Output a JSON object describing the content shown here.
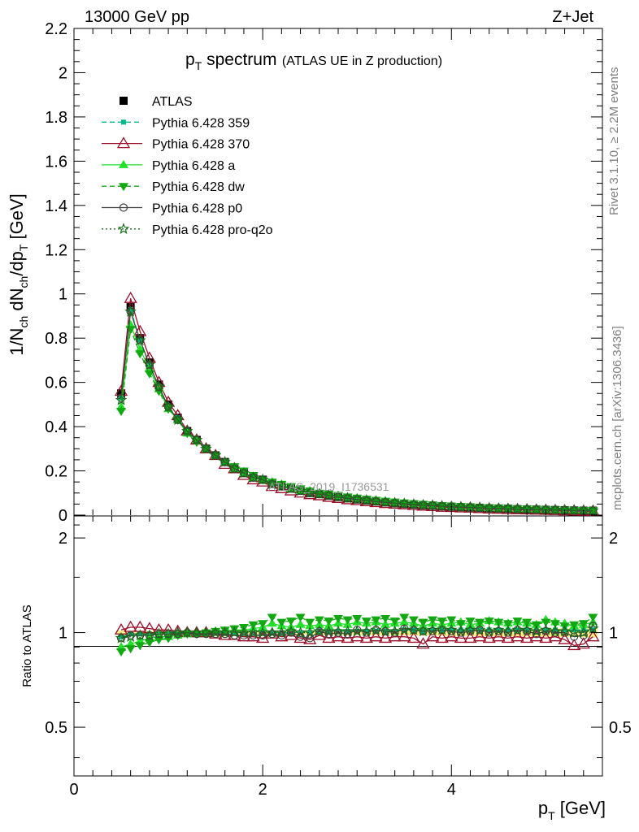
{
  "header": {
    "energy_label": "13000 GeV pp",
    "process_label": "Z+Jet"
  },
  "title": {
    "main": "p",
    "main_sub": "T",
    "main_rest": " spectrum",
    "subtitle": "(ATLAS UE in Z production)"
  },
  "side_labels": {
    "rivet": "Rivet 3.1.10, ≥ 2.2M events",
    "mcplots": "mcplots.cern.ch [arXiv:1306.3436]"
  },
  "watermark": "ATLAS_2019_I1736531",
  "chart_data": [
    {
      "type": "line",
      "panel": "main",
      "ylabel": "1/N_ch dN_ch/dp_T [GeV]",
      "xlim": [
        0,
        5.6
      ],
      "ylim": [
        0,
        2.2
      ],
      "y_ticks": [
        "0",
        "0.2",
        "0.4",
        "0.6",
        "0.8",
        "1",
        "1.2",
        "1.4",
        "1.6",
        "1.8",
        "2",
        "2.2"
      ],
      "x": [
        0.5,
        0.6,
        0.7,
        0.8,
        0.9,
        1.0,
        1.1,
        1.2,
        1.3,
        1.4,
        1.5,
        1.6,
        1.7,
        1.8,
        1.9,
        2.0,
        2.1,
        2.2,
        2.3,
        2.4,
        2.5,
        2.6,
        2.7,
        2.8,
        2.9,
        3.0,
        3.1,
        3.2,
        3.3,
        3.4,
        3.5,
        3.6,
        3.7,
        3.8,
        3.9,
        4.0,
        4.1,
        4.2,
        4.3,
        4.4,
        4.5,
        4.6,
        4.7,
        4.8,
        4.9,
        5.0,
        5.1,
        5.2,
        5.3,
        5.4,
        5.5
      ],
      "series": [
        {
          "name": "ATLAS",
          "color": "#000000",
          "marker": "filled-square",
          "line": "none",
          "values": [
            0.55,
            0.94,
            0.8,
            0.69,
            0.59,
            0.5,
            0.44,
            0.38,
            0.34,
            0.3,
            0.27,
            0.24,
            0.21,
            0.19,
            0.17,
            0.16,
            0.14,
            0.13,
            0.12,
            0.11,
            0.1,
            0.095,
            0.088,
            0.082,
            0.076,
            0.071,
            0.066,
            0.062,
            0.058,
            0.054,
            0.051,
            0.048,
            0.045,
            0.043,
            0.04,
            0.038,
            0.036,
            0.035,
            0.033,
            0.031,
            0.03,
            0.029,
            0.027,
            0.026,
            0.025,
            0.024,
            0.023,
            0.022,
            0.021,
            0.02,
            0.02
          ]
        },
        {
          "name": "Pythia 6.428 359",
          "color": "#00b887",
          "marker": "small-filled-square",
          "line": "dashed",
          "values": [
            0.53,
            0.93,
            0.79,
            0.68,
            0.58,
            0.49,
            0.44,
            0.38,
            0.34,
            0.3,
            0.27,
            0.24,
            0.21,
            0.19,
            0.17,
            0.16,
            0.14,
            0.13,
            0.12,
            0.11,
            0.1,
            0.096,
            0.089,
            0.083,
            0.077,
            0.072,
            0.067,
            0.063,
            0.059,
            0.055,
            0.052,
            0.049,
            0.046,
            0.044,
            0.041,
            0.039,
            0.037,
            0.036,
            0.034,
            0.032,
            0.031,
            0.03,
            0.028,
            0.027,
            0.026,
            0.025,
            0.024,
            0.023,
            0.022,
            0.021,
            0.021
          ]
        },
        {
          "name": "Pythia 6.428 370",
          "color": "#9b0f2a",
          "marker": "open-triangle",
          "line": "solid",
          "values": [
            0.56,
            0.98,
            0.83,
            0.71,
            0.6,
            0.51,
            0.45,
            0.38,
            0.34,
            0.3,
            0.27,
            0.23,
            0.21,
            0.18,
            0.16,
            0.15,
            0.13,
            0.12,
            0.11,
            0.1,
            0.093,
            0.088,
            0.081,
            0.076,
            0.07,
            0.066,
            0.061,
            0.057,
            0.053,
            0.05,
            0.047,
            0.044,
            0.041,
            0.039,
            0.036,
            0.035,
            0.033,
            0.032,
            0.03,
            0.028,
            0.027,
            0.026,
            0.025,
            0.024,
            0.023,
            0.022,
            0.021,
            0.02,
            0.019,
            0.018,
            0.018
          ]
        },
        {
          "name": "Pythia 6.428 a",
          "color": "#22e02a",
          "marker": "filled-triangle",
          "line": "solid",
          "values": [
            0.49,
            0.86,
            0.75,
            0.66,
            0.57,
            0.48,
            0.43,
            0.37,
            0.34,
            0.3,
            0.27,
            0.24,
            0.21,
            0.19,
            0.17,
            0.16,
            0.15,
            0.14,
            0.12,
            0.11,
            0.11,
            0.1,
            0.094,
            0.087,
            0.081,
            0.076,
            0.071,
            0.066,
            0.062,
            0.058,
            0.055,
            0.052,
            0.049,
            0.046,
            0.043,
            0.041,
            0.039,
            0.037,
            0.035,
            0.033,
            0.032,
            0.031,
            0.029,
            0.028,
            0.027,
            0.026,
            0.025,
            0.024,
            0.023,
            0.022,
            0.022
          ]
        },
        {
          "name": "Pythia 6.428 dw",
          "color": "#11a811",
          "marker": "filled-inverted-triangle",
          "line": "dashed",
          "values": [
            0.47,
            0.84,
            0.73,
            0.64,
            0.56,
            0.48,
            0.43,
            0.37,
            0.33,
            0.3,
            0.27,
            0.24,
            0.22,
            0.2,
            0.18,
            0.16,
            0.15,
            0.14,
            0.13,
            0.12,
            0.11,
            0.1,
            0.096,
            0.09,
            0.083,
            0.078,
            0.073,
            0.068,
            0.064,
            0.06,
            0.056,
            0.053,
            0.05,
            0.047,
            0.044,
            0.042,
            0.04,
            0.038,
            0.036,
            0.034,
            0.033,
            0.031,
            0.03,
            0.029,
            0.027,
            0.026,
            0.025,
            0.024,
            0.023,
            0.022,
            0.022
          ]
        },
        {
          "name": "Pythia 6.428 p0",
          "color": "#404040",
          "marker": "open-circle",
          "line": "solid",
          "values": [
            0.53,
            0.92,
            0.79,
            0.68,
            0.58,
            0.49,
            0.43,
            0.38,
            0.34,
            0.3,
            0.27,
            0.24,
            0.21,
            0.19,
            0.17,
            0.16,
            0.14,
            0.13,
            0.12,
            0.11,
            0.1,
            0.095,
            0.088,
            0.082,
            0.076,
            0.071,
            0.066,
            0.062,
            0.058,
            0.054,
            0.051,
            0.048,
            0.045,
            0.043,
            0.04,
            0.038,
            0.036,
            0.035,
            0.033,
            0.031,
            0.03,
            0.029,
            0.027,
            0.026,
            0.025,
            0.024,
            0.023,
            0.022,
            0.021,
            0.02,
            0.02
          ]
        },
        {
          "name": "Pythia 6.428 pro-q2o",
          "color": "#1a6b1a",
          "marker": "open-star",
          "line": "dotted",
          "values": [
            0.52,
            0.92,
            0.79,
            0.68,
            0.58,
            0.49,
            0.43,
            0.38,
            0.34,
            0.3,
            0.27,
            0.24,
            0.21,
            0.19,
            0.17,
            0.16,
            0.14,
            0.13,
            0.12,
            0.11,
            0.1,
            0.096,
            0.089,
            0.083,
            0.077,
            0.072,
            0.067,
            0.063,
            0.059,
            0.055,
            0.052,
            0.049,
            0.046,
            0.044,
            0.041,
            0.039,
            0.037,
            0.036,
            0.034,
            0.032,
            0.031,
            0.03,
            0.028,
            0.027,
            0.026,
            0.025,
            0.024,
            0.023,
            0.022,
            0.021,
            0.021
          ]
        }
      ],
      "legend_placement": "top-left"
    },
    {
      "type": "line",
      "panel": "ratio",
      "ylabel": "Ratio to ATLAS",
      "xlabel": "p_T [GeV]",
      "xlim": [
        0,
        5.6
      ],
      "ylim": [
        0.35,
        2.35
      ],
      "y_scale": "log",
      "y_ticks": [
        "0.5",
        "1",
        "2"
      ],
      "x_ticks": [
        "0",
        "2",
        "4"
      ],
      "reference_band": {
        "color": "#ffee88",
        "half_width": [
          0.015,
          0.012,
          0.012,
          0.012,
          0.012,
          0.012,
          0.012,
          0.012,
          0.012,
          0.012,
          0.012,
          0.012,
          0.012,
          0.012,
          0.013,
          0.013,
          0.013,
          0.014,
          0.014,
          0.015,
          0.015,
          0.016,
          0.016,
          0.017,
          0.017,
          0.018,
          0.018,
          0.019,
          0.019,
          0.02,
          0.02,
          0.021,
          0.022,
          0.022,
          0.023,
          0.024,
          0.024,
          0.025,
          0.026,
          0.026,
          0.027,
          0.028,
          0.028,
          0.029,
          0.03,
          0.03,
          0.031,
          0.032,
          0.033,
          0.034,
          0.035
        ]
      },
      "series": [
        {
          "name": "Pythia 6.428 359",
          "values": [
            0.97,
            0.99,
            0.99,
            0.99,
            0.99,
            0.99,
            1.0,
            1.0,
            1.0,
            1.0,
            1.0,
            1.0,
            1.0,
            1.0,
            1.0,
            1.0,
            1.0,
            1.0,
            1.0,
            1.0,
            1.0,
            1.01,
            1.01,
            1.01,
            1.01,
            1.01,
            1.01,
            1.01,
            1.01,
            1.01,
            1.02,
            1.02,
            1.01,
            1.02,
            1.02,
            1.02,
            1.02,
            1.02,
            1.02,
            1.02,
            1.02,
            1.02,
            1.02,
            1.02,
            1.02,
            1.02,
            1.02,
            1.02,
            1.02,
            1.02,
            1.02
          ]
        },
        {
          "name": "Pythia 6.428 370",
          "values": [
            1.02,
            1.04,
            1.04,
            1.03,
            1.02,
            1.02,
            1.01,
            1.0,
            1.0,
            1.0,
            0.99,
            0.98,
            0.98,
            0.97,
            0.97,
            0.96,
            0.99,
            0.97,
            0.98,
            0.96,
            0.95,
            0.98,
            0.96,
            0.97,
            0.96,
            0.97,
            0.96,
            0.97,
            0.96,
            0.97,
            0.97,
            0.96,
            0.92,
            0.97,
            0.96,
            0.97,
            0.96,
            0.96,
            0.97,
            0.96,
            0.97,
            0.96,
            0.97,
            0.96,
            0.97,
            0.96,
            0.97,
            0.95,
            0.91,
            0.92,
            0.97
          ]
        },
        {
          "name": "Pythia 6.428 a",
          "values": [
            0.9,
            0.92,
            0.94,
            0.96,
            0.97,
            0.97,
            0.98,
            0.99,
            1.0,
            1.0,
            1.01,
            1.01,
            1.02,
            1.02,
            1.03,
            1.04,
            1.07,
            1.05,
            1.04,
            1.06,
            1.05,
            1.06,
            1.05,
            1.07,
            1.06,
            1.08,
            1.07,
            1.08,
            1.06,
            1.07,
            1.08,
            1.07,
            1.05,
            1.07,
            1.06,
            1.07,
            1.08,
            1.06,
            1.07,
            1.09,
            1.08,
            1.07,
            1.08,
            1.07,
            1.06,
            1.1,
            1.08,
            1.07,
            1.05,
            1.06,
            1.08
          ]
        },
        {
          "name": "Pythia 6.428 dw",
          "values": [
            0.87,
            0.89,
            0.91,
            0.93,
            0.95,
            0.96,
            0.98,
            0.99,
            0.99,
            1.0,
            1.01,
            1.02,
            1.03,
            1.04,
            1.06,
            1.07,
            1.12,
            1.08,
            1.09,
            1.12,
            1.08,
            1.1,
            1.09,
            1.11,
            1.1,
            1.11,
            1.09,
            1.1,
            1.11,
            1.09,
            1.12,
            1.1,
            1.08,
            1.1,
            1.09,
            1.1,
            1.07,
            1.09,
            1.08,
            1.09,
            1.08,
            1.07,
            1.09,
            1.08,
            1.06,
            1.08,
            1.07,
            1.05,
            1.06,
            1.07,
            1.12
          ]
        },
        {
          "name": "Pythia 6.428 p0",
          "values": [
            0.96,
            0.98,
            0.98,
            0.98,
            0.99,
            0.99,
            0.99,
            1.0,
            0.99,
            0.99,
            0.99,
            0.99,
            0.98,
            0.98,
            0.98,
            0.98,
            0.99,
            0.98,
            1.0,
            0.97,
            0.96,
            1.01,
            0.99,
            1.0,
            0.99,
            1.02,
            1.0,
            1.02,
            1.01,
            1.0,
            1.03,
            1.02,
            1.01,
            1.01,
            1.02,
            1.01,
            1.0,
            1.01,
            1.02,
            1.0,
            1.01,
            1.0,
            1.02,
            1.01,
            0.99,
            1.01,
            1.0,
            1.0,
            0.97,
            0.98,
            1.05
          ]
        },
        {
          "name": "Pythia 6.428 pro-q2o",
          "values": [
            0.96,
            0.97,
            0.98,
            0.98,
            0.99,
            0.99,
            1.0,
            1.0,
            1.0,
            1.0,
            1.0,
            1.0,
            1.0,
            1.0,
            1.0,
            1.0,
            1.0,
            1.0,
            1.01,
            1.0,
            1.0,
            1.01,
            1.01,
            1.01,
            1.01,
            1.01,
            1.01,
            1.02,
            1.01,
            1.01,
            1.02,
            1.02,
            1.01,
            1.02,
            1.02,
            1.02,
            1.01,
            1.02,
            1.02,
            1.01,
            1.02,
            1.01,
            1.02,
            1.02,
            1.01,
            1.02,
            1.01,
            1.01,
            1.0,
            1.0,
            1.03
          ]
        }
      ]
    }
  ]
}
